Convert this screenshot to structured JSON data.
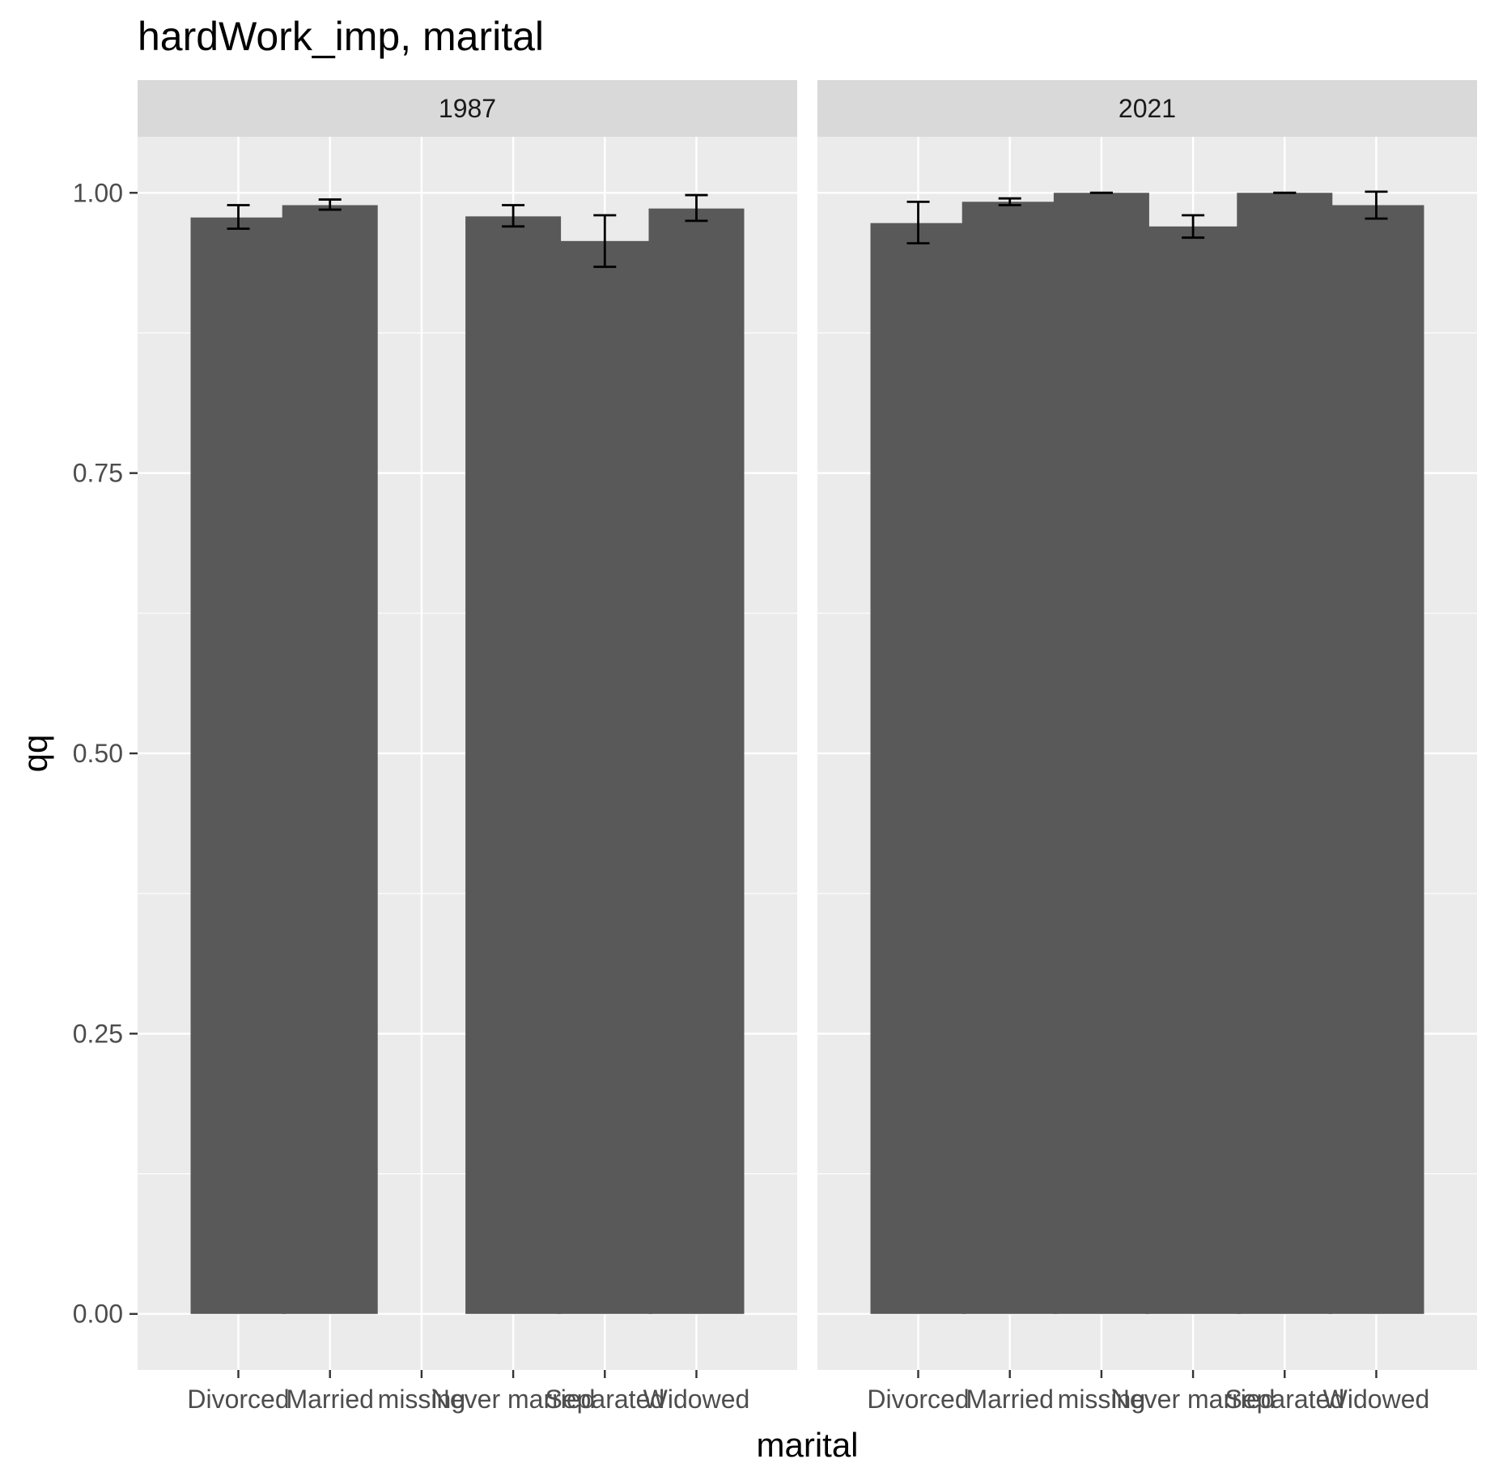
{
  "chart_data": {
    "type": "bar",
    "title": "hardWork_imp, marital",
    "xlabel": "marital",
    "ylabel": "qq",
    "ylim": [
      -0.05,
      1.05
    ],
    "yticks": [
      0.0,
      0.25,
      0.5,
      0.75,
      1.0
    ],
    "ytick_labels": [
      "0.00",
      "0.25",
      "0.50",
      "0.75",
      "1.00"
    ],
    "categories": [
      "Divorced",
      "Married",
      "missing",
      "Never married",
      "Separated",
      "Widowed"
    ],
    "panels": [
      {
        "facet": "1987",
        "values": [
          0.978,
          0.989,
          null,
          0.979,
          0.957,
          0.986
        ],
        "err_low": [
          0.968,
          0.985,
          null,
          0.97,
          0.934,
          0.975
        ],
        "err_high": [
          0.989,
          0.994,
          null,
          0.989,
          0.98,
          0.998
        ]
      },
      {
        "facet": "2021",
        "values": [
          0.973,
          0.992,
          1.0,
          0.97,
          1.0,
          0.989
        ],
        "err_low": [
          0.955,
          0.989,
          1.0,
          0.96,
          1.0,
          0.977
        ],
        "err_high": [
          0.992,
          0.995,
          1.0,
          0.98,
          1.0,
          1.001
        ]
      }
    ],
    "colors": {
      "bar": "#595959",
      "panel_bg": "#ebebeb",
      "strip_bg": "#d9d9d9",
      "grid": "#ffffff",
      "errorbar": "#000000"
    },
    "grid": true,
    "legend": "none"
  }
}
